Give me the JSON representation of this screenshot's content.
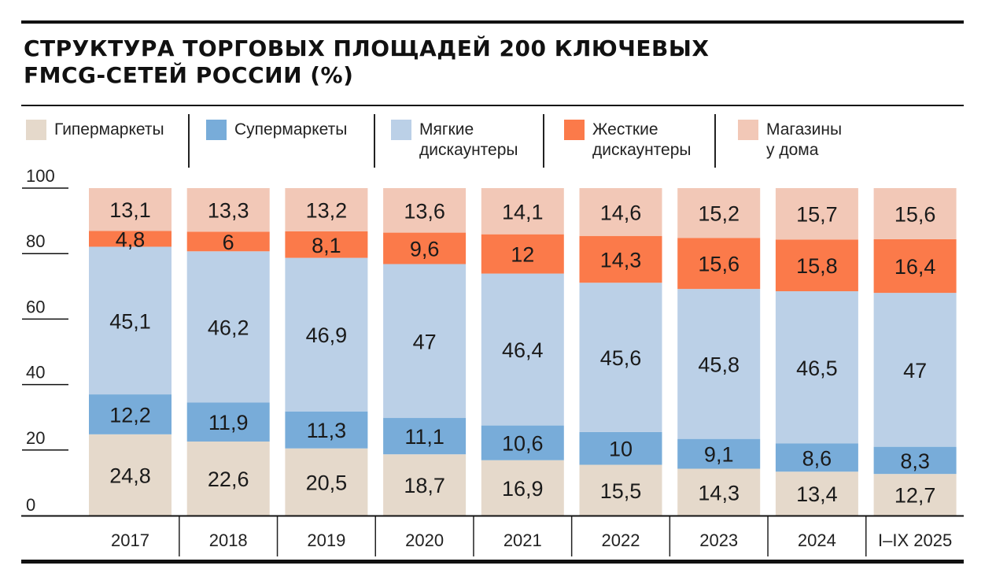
{
  "title_line1": "СТРУКТУРА ТОРГОВЫХ ПЛОЩАДЕЙ 200 КЛЮЧЕВЫХ",
  "title_line2": "FMCG-СЕТЕЙ РОССИИ (%)",
  "chart_data": {
    "type": "bar",
    "stacked": true,
    "title": "Структура торговых площадей 200 ключевых FMCG-сетей России (%)",
    "categories": [
      "2017",
      "2018",
      "2019",
      "2020",
      "2021",
      "2022",
      "2023",
      "2024",
      "I–IX 2025"
    ],
    "ylim": [
      0,
      100
    ],
    "yticks": [
      "0",
      "20",
      "40",
      "60",
      "80",
      "100"
    ],
    "legend_position": "top",
    "series": [
      {
        "name": "Гипермаркеты",
        "color": "#e5d9cb",
        "values": [
          24.8,
          22.6,
          20.5,
          18.7,
          16.9,
          15.5,
          14.3,
          13.4,
          12.7
        ],
        "labels": [
          "24,8",
          "22,6",
          "20,5",
          "18,7",
          "16,9",
          "15,5",
          "14,3",
          "13,4",
          "12,7"
        ]
      },
      {
        "name": "Супермаркеты",
        "color": "#78acd9",
        "values": [
          12.2,
          11.9,
          11.3,
          11.1,
          10.6,
          10,
          9.1,
          8.6,
          8.3
        ],
        "labels": [
          "12,2",
          "11,9",
          "11,3",
          "11,1",
          "10,6",
          "10",
          "9,1",
          "8,6",
          "8,3"
        ]
      },
      {
        "name": "Мягкие дискаунтеры",
        "color": "#bbd0e7",
        "values": [
          45.1,
          46.2,
          46.9,
          47,
          46.4,
          45.6,
          45.8,
          46.5,
          47
        ],
        "labels": [
          "45,1",
          "46,2",
          "46,9",
          "47",
          "46,4",
          "45,6",
          "45,8",
          "46,5",
          "47"
        ]
      },
      {
        "name": "Жесткие дискаунтеры",
        "color": "#fb7a4a",
        "values": [
          4.8,
          6,
          8.1,
          9.6,
          12,
          14.3,
          15.6,
          15.8,
          16.4
        ],
        "labels": [
          "4,8",
          "6",
          "8,1",
          "9,6",
          "12",
          "14,3",
          "15,6",
          "15,8",
          "16,4"
        ]
      },
      {
        "name": "Магазины у дома",
        "color": "#f2c8b7",
        "values": [
          13.1,
          13.3,
          13.2,
          13.6,
          14.1,
          14.6,
          15.2,
          15.7,
          15.6
        ],
        "labels": [
          "13,1",
          "13,3",
          "13,2",
          "13,6",
          "14,1",
          "14,6",
          "15,2",
          "15,7",
          "15,6"
        ]
      }
    ],
    "legend": [
      {
        "line1": "Гипермаркеты",
        "line2": ""
      },
      {
        "line1": "Супермаркеты",
        "line2": ""
      },
      {
        "line1": "Мягкие",
        "line2": "дискаунтеры"
      },
      {
        "line1": "Жесткие",
        "line2": "дискаунтеры"
      },
      {
        "line1": "Магазины",
        "line2": "у дома"
      }
    ]
  }
}
